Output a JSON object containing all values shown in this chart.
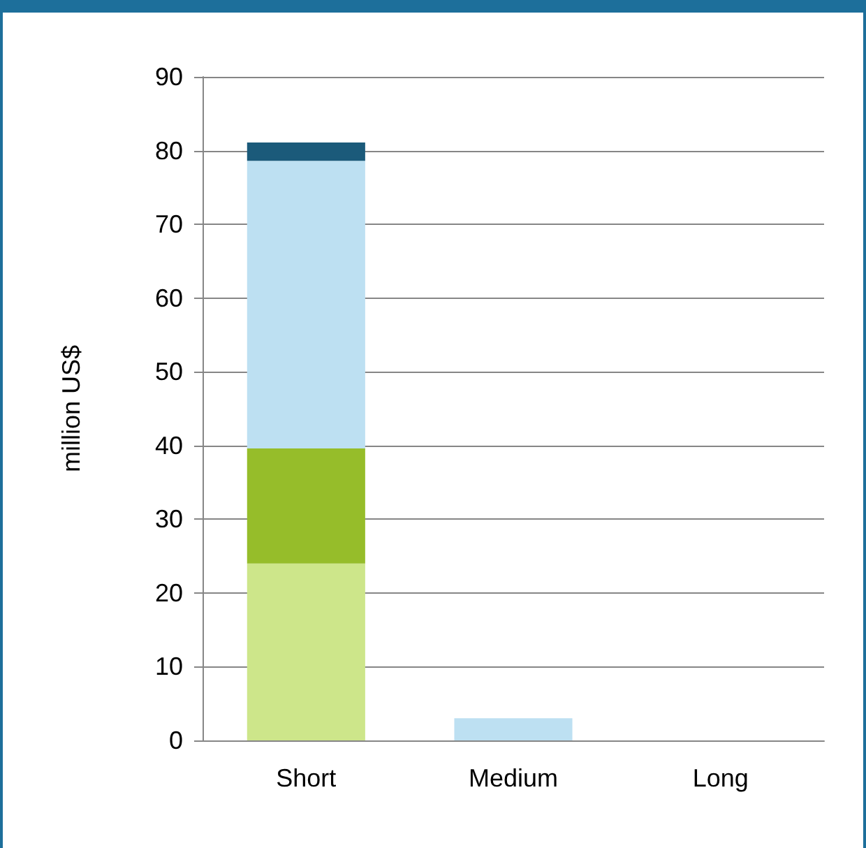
{
  "chart_data": {
    "type": "bar",
    "ylabel": "million US$",
    "categories": [
      "Short",
      "Medium",
      "Long"
    ],
    "stacked": true,
    "ylim": [
      0,
      90
    ],
    "yticks": [
      0,
      10,
      20,
      30,
      40,
      50,
      60,
      70,
      80,
      90
    ],
    "grid": "y",
    "series": [
      {
        "color": "#cde68a",
        "values": [
          24,
          0,
          0
        ]
      },
      {
        "color": "#96bd2a",
        "values": [
          15.6,
          0,
          0
        ]
      },
      {
        "color": "#bde0f2",
        "values": [
          39,
          3,
          0
        ]
      },
      {
        "color": "#1b5a7a",
        "values": [
          2.5,
          0,
          0
        ]
      }
    ]
  }
}
